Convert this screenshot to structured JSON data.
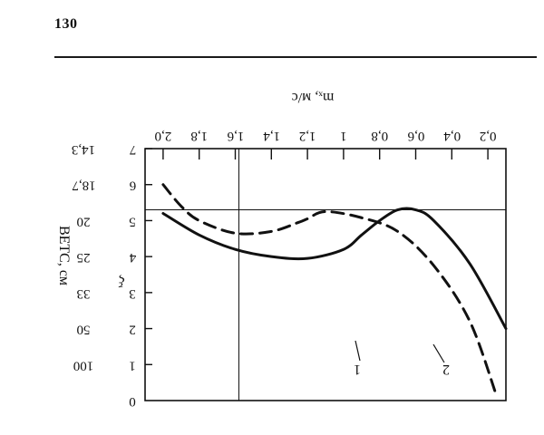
{
  "page": {
    "number": "130"
  },
  "chart_data": {
    "type": "line",
    "render": "printed upside-down (rotated 180 degrees)",
    "x_axis": {
      "label": "mₓ, м/с",
      "ticks": [
        "2,0",
        "1,8",
        "1,6",
        "1,4",
        "1,2",
        "1",
        "0,8",
        "0,6",
        "0,4",
        "0,2"
      ],
      "xlim": [
        0.1,
        2.1
      ]
    },
    "y_axis_left": {
      "label": "ξ",
      "ticks": [
        "0",
        "1",
        "2",
        "3",
        "4",
        "5",
        "6",
        "7"
      ],
      "ylim": [
        0,
        7
      ]
    },
    "y_axis_right": {
      "label": "BETC, см",
      "ticks": [
        "100",
        "50",
        "33",
        "25",
        "20",
        "18,7",
        "14,3"
      ]
    },
    "reference_lines": {
      "y": 5.3,
      "x": 1.58
    },
    "series": [
      {
        "name": "1",
        "style": "dashed",
        "x": [
          2.0,
          1.9,
          1.8,
          1.6,
          1.4,
          1.25,
          1.2,
          1.1,
          0.9,
          0.7,
          0.5,
          0.3,
          0.15
        ],
        "y": [
          6.0,
          5.4,
          5.0,
          4.65,
          4.7,
          4.95,
          5.05,
          5.25,
          5.08,
          4.7,
          3.75,
          2.2,
          0.1
        ]
      },
      {
        "name": "2",
        "style": "solid",
        "x": [
          2.0,
          1.8,
          1.6,
          1.4,
          1.2,
          1.0,
          0.9,
          0.8,
          0.7,
          0.6,
          0.5,
          0.3,
          0.1
        ],
        "y": [
          5.2,
          4.6,
          4.2,
          4.0,
          3.95,
          4.2,
          4.6,
          5.0,
          5.3,
          5.3,
          5.0,
          3.8,
          2.0
        ]
      }
    ],
    "curve_labels": [
      "1",
      "2"
    ]
  }
}
